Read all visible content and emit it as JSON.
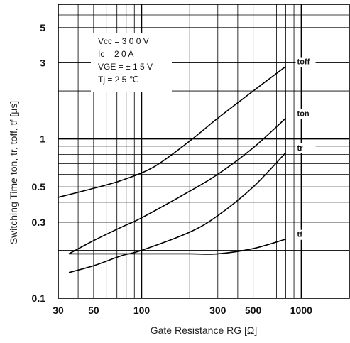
{
  "chart_data": {
    "type": "line",
    "xlabel": "Gate Resistance RG [Ω]",
    "ylabel": "Switching Time ton, tr, toff, tf [μs]",
    "x_scale": "log",
    "y_scale": "log",
    "xlim": [
      30,
      2000
    ],
    "ylim": [
      0.1,
      7
    ],
    "x_ticks": [
      30,
      50,
      100,
      300,
      500,
      1000
    ],
    "x_tick_labels": [
      "30",
      "50",
      "100",
      "300",
      "500",
      "1000"
    ],
    "y_ticks": [
      0.1,
      0.3,
      0.5,
      1,
      3,
      5
    ],
    "y_tick_labels": [
      "0.1",
      "0.3",
      "0.5",
      "1",
      "3",
      "5"
    ],
    "grid": true,
    "conditions": [
      "Vcc = 3 0 0 V",
      "Ic = 2 0 A",
      "VGE = ± 1 5 V",
      "Tj = 2 5 ℃"
    ],
    "series": [
      {
        "name": "toff",
        "color": "#000000",
        "x": [
          30,
          50,
          75,
          120,
          200,
          300,
          500,
          800
        ],
        "y": [
          0.43,
          0.49,
          0.55,
          0.67,
          0.97,
          1.35,
          2.0,
          2.85
        ]
      },
      {
        "name": "ton",
        "color": "#000000",
        "x": [
          35,
          50,
          75,
          100,
          200,
          300,
          500,
          800
        ],
        "y": [
          0.19,
          0.23,
          0.28,
          0.32,
          0.47,
          0.6,
          0.88,
          1.35
        ]
      },
      {
        "name": "tr",
        "color": "#000000",
        "x": [
          35,
          50,
          75,
          100,
          200,
          300,
          500,
          800
        ],
        "y": [
          0.145,
          0.16,
          0.185,
          0.2,
          0.26,
          0.33,
          0.5,
          0.82
        ]
      },
      {
        "name": "tf",
        "color": "#000000",
        "x": [
          35,
          60,
          100,
          200,
          300,
          500,
          800
        ],
        "y": [
          0.19,
          0.19,
          0.19,
          0.19,
          0.19,
          0.205,
          0.235
        ]
      }
    ]
  }
}
